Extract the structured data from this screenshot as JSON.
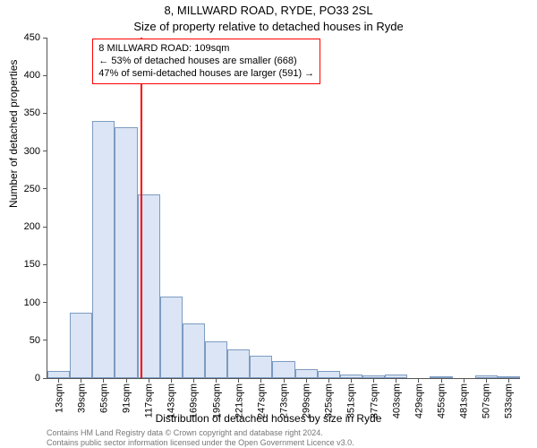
{
  "titles": {
    "line1": "8, MILLWARD ROAD, RYDE, PO33 2SL",
    "line2": "Size of property relative to detached houses in Ryde"
  },
  "axes": {
    "ylabel": "Number of detached properties",
    "xlabel": "Distribution of detached houses by size in Ryde",
    "ylim": [
      0,
      450
    ],
    "yticks": [
      0,
      50,
      100,
      150,
      200,
      250,
      300,
      350,
      400,
      450
    ],
    "xtick_labels": [
      "13sqm",
      "39sqm",
      "65sqm",
      "91sqm",
      "117sqm",
      "143sqm",
      "169sqm",
      "195sqm",
      "221sqm",
      "247sqm",
      "273sqm",
      "299sqm",
      "325sqm",
      "351sqm",
      "377sqm",
      "403sqm",
      "429sqm",
      "455sqm",
      "481sqm",
      "507sqm",
      "533sqm"
    ],
    "label_fontsize": 12,
    "tick_fontsize": 11
  },
  "chart": {
    "type": "histogram",
    "bin_width_sqm": 26,
    "values": [
      10,
      87,
      340,
      332,
      243,
      108,
      72,
      49,
      38,
      30,
      22,
      12,
      10,
      5,
      4,
      5,
      0,
      2,
      0,
      3,
      2
    ],
    "bar_fill": "#dbe5f5",
    "bar_stroke": "#7d9bc1",
    "bar_width_ratio": 1.0,
    "background": "#ffffff"
  },
  "reference": {
    "x_sqm": 109,
    "color": "#ff0000",
    "line_width": 2
  },
  "callout": {
    "border_color": "#ff0000",
    "bg": "#ffffff",
    "lines": [
      "8 MILLWARD ROAD: 109sqm",
      "← 53% of detached houses are smaller (668)",
      "47% of semi-detached houses are larger (591) →"
    ],
    "x_sqm": 52,
    "y_value": 440
  },
  "footer": {
    "line1": "Contains HM Land Registry data © Crown copyright and database right 2024.",
    "line2": "Contains public sector information licensed under the Open Government Licence v3.0.",
    "color": "#777777",
    "fontsize": 9
  }
}
